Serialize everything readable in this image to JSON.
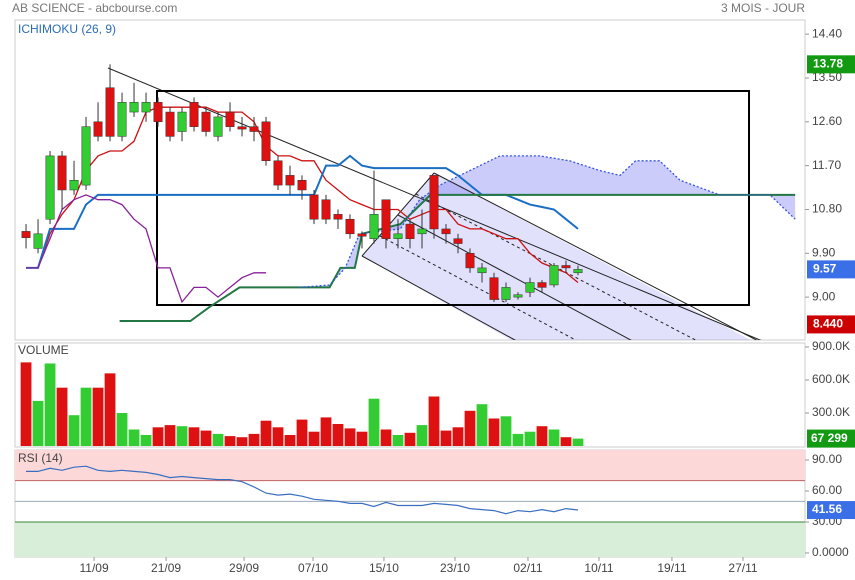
{
  "header": {
    "title": "AB SCIENCE - abcbourse.com",
    "period": "3 MOIS - JOUR"
  },
  "chart_data": [
    {
      "type": "candlestick",
      "title": "ICHIMOKU (26, 9)",
      "x": [
        0,
        1,
        2,
        3,
        4,
        5,
        6,
        7,
        8,
        9,
        10,
        11,
        12,
        13,
        14,
        15,
        16,
        17,
        18,
        19,
        20,
        21,
        22,
        23,
        24,
        25,
        26,
        27,
        28,
        29,
        30,
        31,
        32,
        33,
        34,
        35,
        36,
        37,
        38,
        39,
        40,
        41,
        42,
        43,
        44,
        45,
        46
      ],
      "open": [
        10.35,
        10.0,
        10.6,
        11.9,
        11.2,
        11.3,
        12.6,
        13.3,
        12.3,
        12.8,
        12.8,
        13.0,
        12.8,
        12.4,
        13.0,
        12.8,
        12.3,
        12.8,
        12.5,
        12.5,
        12.6,
        11.8,
        11.5,
        11.4,
        11.1,
        11.0,
        10.7,
        10.6,
        10.3,
        10.2,
        11.0,
        10.2,
        10.5,
        10.3,
        11.5,
        10.4,
        10.2,
        9.9,
        9.5,
        9.4,
        8.95,
        9.0,
        9.1,
        9.3,
        9.25,
        9.65,
        9.5
      ],
      "high": [
        10.5,
        10.6,
        12.0,
        12.0,
        11.8,
        12.7,
        13.0,
        13.78,
        13.2,
        13.4,
        13.2,
        13.1,
        12.9,
        12.9,
        13.1,
        12.9,
        12.8,
        13.0,
        12.7,
        12.7,
        12.7,
        11.9,
        11.7,
        11.5,
        11.2,
        11.1,
        10.8,
        10.7,
        10.35,
        11.6,
        11.0,
        10.6,
        10.6,
        10.8,
        11.5,
        10.5,
        10.3,
        10.0,
        9.7,
        9.5,
        9.3,
        9.1,
        9.4,
        9.35,
        9.7,
        9.75,
        9.65
      ],
      "low": [
        10.0,
        9.9,
        10.5,
        10.8,
        11.1,
        11.2,
        12.2,
        12.2,
        12.2,
        12.7,
        12.6,
        12.5,
        12.2,
        12.2,
        12.4,
        12.3,
        12.2,
        12.4,
        12.3,
        12.2,
        11.7,
        11.2,
        11.1,
        11.0,
        10.5,
        10.5,
        10.4,
        10.2,
        10.0,
        10.1,
        10.0,
        10.0,
        10.0,
        10.0,
        10.2,
        10.1,
        9.9,
        9.5,
        9.3,
        8.9,
        8.9,
        8.95,
        9.0,
        9.1,
        9.2,
        9.5,
        9.45
      ],
      "close": [
        10.22,
        10.3,
        11.9,
        11.2,
        11.4,
        12.5,
        12.3,
        12.3,
        13.0,
        13.0,
        13.0,
        12.6,
        12.3,
        12.8,
        12.5,
        12.4,
        12.7,
        12.5,
        12.45,
        12.4,
        11.8,
        11.3,
        11.3,
        11.2,
        10.6,
        10.6,
        10.6,
        10.3,
        10.25,
        10.7,
        10.2,
        10.3,
        10.2,
        10.4,
        10.4,
        10.3,
        10.1,
        9.6,
        9.6,
        8.95,
        9.2,
        9.05,
        9.3,
        9.2,
        9.65,
        9.6,
        9.57
      ],
      "up_color": "#33cc33",
      "down_color": "#dd1111",
      "lines": [
        {
          "name": "tenkan",
          "color": "#cc1111",
          "values": [
            9.6,
            9.6,
            10.3,
            10.7,
            11.0,
            11.6,
            11.9,
            12.0,
            12.0,
            12.2,
            12.8,
            12.9,
            12.9,
            12.9,
            12.9,
            12.9,
            12.8,
            12.8,
            12.8,
            12.6,
            12.1,
            11.9,
            11.9,
            11.8,
            11.8,
            11.4,
            11.2,
            11.0,
            10.9,
            10.8,
            10.8,
            10.8,
            10.6,
            10.7,
            10.8,
            10.8,
            10.5,
            10.4,
            10.4,
            10.3,
            10.2,
            10.2,
            9.9,
            9.7,
            9.6,
            9.5,
            9.3
          ]
        },
        {
          "name": "kijun",
          "color": "#1a6fc4",
          "values": [
            9.6,
            9.6,
            10.4,
            10.4,
            10.4,
            10.9,
            11.1,
            11.1,
            11.1,
            11.1,
            11.1,
            11.1,
            11.1,
            11.1,
            11.1,
            11.1,
            11.1,
            11.1,
            11.1,
            11.1,
            11.1,
            11.1,
            11.1,
            11.1,
            11.1,
            11.7,
            11.7,
            11.9,
            11.7,
            11.65,
            11.65,
            11.65,
            11.65,
            11.65,
            11.65,
            11.65,
            11.5,
            11.3,
            11.1,
            11.1,
            11.1,
            11.0,
            10.9,
            10.85,
            10.8,
            10.6,
            10.4
          ]
        },
        {
          "name": "chikou",
          "color": "#882299",
          "values": [
            9.6,
            9.6,
            10.2,
            10.8,
            11.0,
            11.1,
            11.0,
            11.0,
            10.9,
            10.6,
            10.4,
            9.6,
            9.6,
            8.9,
            9.2,
            9.2,
            9.0,
            9.2,
            9.4,
            9.5,
            9.5
          ]
        },
        {
          "name": "senkou-b",
          "color": "#227744",
          "x": [
            7.8,
            13.7,
            15.3,
            17.8,
            25.3,
            26.2,
            27.4,
            28,
            31.2,
            33.7,
            64.1
          ],
          "values": [
            8.51,
            8.51,
            8.8,
            9.2,
            9.2,
            9.6,
            9.6,
            10.3,
            10.5,
            11.1,
            11.1
          ]
        },
        {
          "name": "senkou-a",
          "color": "#3355dd",
          "dashed": true,
          "x": [
            22.8,
            25.3,
            26.6,
            27.8,
            31.2,
            32.8,
            34.5,
            37,
            39.5,
            42.8,
            45.3,
            47.8,
            49.5,
            50.8,
            52.8,
            54.5,
            57.8,
            62,
            64.1
          ],
          "values": [
            9.2,
            9.25,
            9.6,
            10.3,
            10.4,
            11.0,
            11.3,
            11.6,
            11.9,
            11.9,
            11.8,
            11.6,
            11.5,
            11.8,
            11.8,
            11.4,
            11.1,
            11.1,
            10.6
          ]
        }
      ],
      "xlim": [
        -0.92,
        64.92
      ],
      "ylim": [
        8.12,
        14.69
      ],
      "xticks": [
        {
          "value": 5.67,
          "label": "11/09"
        },
        {
          "value": 11.67,
          "label": "21/09"
        },
        {
          "value": 18.17,
          "label": "29/09"
        },
        {
          "value": 23.92,
          "label": "07/10"
        },
        {
          "value": 29.83,
          "label": "15/10"
        },
        {
          "value": 35.75,
          "label": "23/10"
        },
        {
          "value": 41.83,
          "label": "02/11"
        },
        {
          "value": 47.75,
          "label": "10/11"
        },
        {
          "value": 53.83,
          "label": "19/11"
        },
        {
          "value": 59.75,
          "label": "27/11"
        }
      ],
      "yticks": [
        {
          "value": 14.4,
          "label": "14.40"
        },
        {
          "value": 13.5,
          "label": "13.50"
        },
        {
          "value": 12.6,
          "label": "12.60"
        },
        {
          "value": 11.7,
          "label": "11.70"
        },
        {
          "value": 10.8,
          "label": "10.80"
        },
        {
          "value": 9.9,
          "label": "9.90"
        },
        {
          "value": 9,
          "label": "9.00"
        }
      ],
      "badges": [
        {
          "value": 13.78,
          "label": "13.78",
          "color": "#129a12"
        },
        {
          "value": 9.57,
          "label": "9.57",
          "color": "#3b6fe8"
        },
        {
          "value": 8.44,
          "label": "8.440",
          "color": "#cc0000"
        }
      ]
    },
    {
      "type": "bar",
      "title": "VOLUME",
      "values": [
        760000,
        410000,
        750000,
        530000,
        280000,
        530000,
        530000,
        660000,
        300000,
        150000,
        100000,
        170000,
        190000,
        180000,
        170000,
        140000,
        110000,
        90000,
        80000,
        110000,
        230000,
        170000,
        100000,
        240000,
        130000,
        260000,
        200000,
        160000,
        130000,
        430000,
        150000,
        100000,
        120000,
        190000,
        450000,
        140000,
        170000,
        320000,
        380000,
        250000,
        270000,
        110000,
        130000,
        180000,
        150000,
        80000,
        67299
      ],
      "ylim": [
        -9000,
        936000
      ],
      "yticks": [
        {
          "value": 900000,
          "label": "900.0K"
        },
        {
          "value": 600000,
          "label": "600.0K"
        },
        {
          "value": 300000,
          "label": "300.0K"
        }
      ],
      "badge": {
        "value": 67299,
        "label": "67 299",
        "color": "#129a12"
      }
    },
    {
      "type": "line",
      "title": "RSI (14)",
      "color": "#3a6fc0",
      "values": [
        79,
        79,
        82,
        80,
        83,
        84,
        80,
        79,
        80,
        79,
        78,
        76,
        73,
        74,
        73,
        72,
        71,
        71,
        69,
        64,
        58,
        56,
        57,
        55,
        52,
        51,
        50,
        48,
        48,
        45,
        49,
        46,
        46,
        46,
        48,
        47,
        46,
        43,
        42,
        41,
        38,
        41,
        40,
        42,
        40,
        43,
        41.56
      ],
      "ylim": [
        -3.9,
        99.7
      ],
      "yticks": [
        {
          "value": 90,
          "label": "90.00"
        },
        {
          "value": 60,
          "label": "60.00"
        },
        {
          "value": 30,
          "label": "30.00"
        },
        {
          "value": 0,
          "label": "0.0000"
        }
      ],
      "overbought": 70,
      "oversold": 30,
      "midline": 50,
      "badge_color": "#3b6fe8"
    }
  ]
}
